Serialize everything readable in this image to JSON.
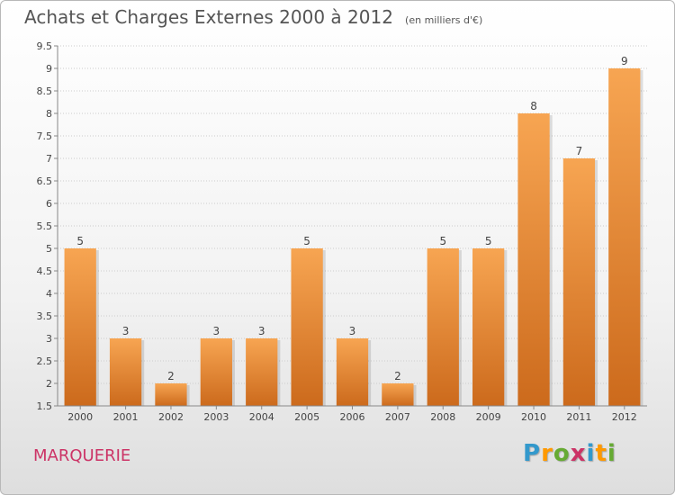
{
  "header": {
    "title": "Achats et Charges Externes 2000 à 2012",
    "subtitle": "(en milliers d'€)"
  },
  "footer": {
    "commune": "MARQUERIE",
    "brand": "Proxiti",
    "brand_colors": [
      "#3399cc",
      "#ff9900",
      "#66aa33",
      "#cc3366",
      "#3399cc",
      "#ff9900",
      "#66aa33"
    ]
  },
  "colors": {
    "bar_top": "#f7a552",
    "bar_bottom": "#cc6a1c",
    "grid": "#cccccc",
    "axis": "#888888"
  },
  "chart_data": {
    "type": "bar",
    "title": "Achats et Charges Externes 2000 à 2012",
    "xlabel": "",
    "ylabel": "",
    "categories": [
      "2000",
      "2001",
      "2002",
      "2003",
      "2004",
      "2005",
      "2006",
      "2007",
      "2008",
      "2009",
      "2010",
      "2011",
      "2012"
    ],
    "values": [
      5,
      3,
      2,
      3,
      3,
      5,
      3,
      2,
      5,
      5,
      8,
      7,
      9
    ],
    "data_labels": [
      "5",
      "3",
      "2",
      "3",
      "3",
      "5",
      "3",
      "2",
      "5",
      "5",
      "8",
      "7",
      "9"
    ],
    "ylim": [
      1.5,
      9.5
    ],
    "yticks": [
      1.5,
      2,
      2.5,
      3,
      3.5,
      4,
      4.5,
      5,
      5.5,
      6,
      6.5,
      7,
      7.5,
      8,
      8.5,
      9,
      9.5
    ],
    "ytick_labels": [
      "1.5",
      "2",
      "2.5",
      "3",
      "3.5",
      "4",
      "4.5",
      "5",
      "5.5",
      "6",
      "6.5",
      "7",
      "7.5",
      "8",
      "8.5",
      "9",
      "9.5"
    ],
    "grid": true,
    "legend": "none"
  }
}
